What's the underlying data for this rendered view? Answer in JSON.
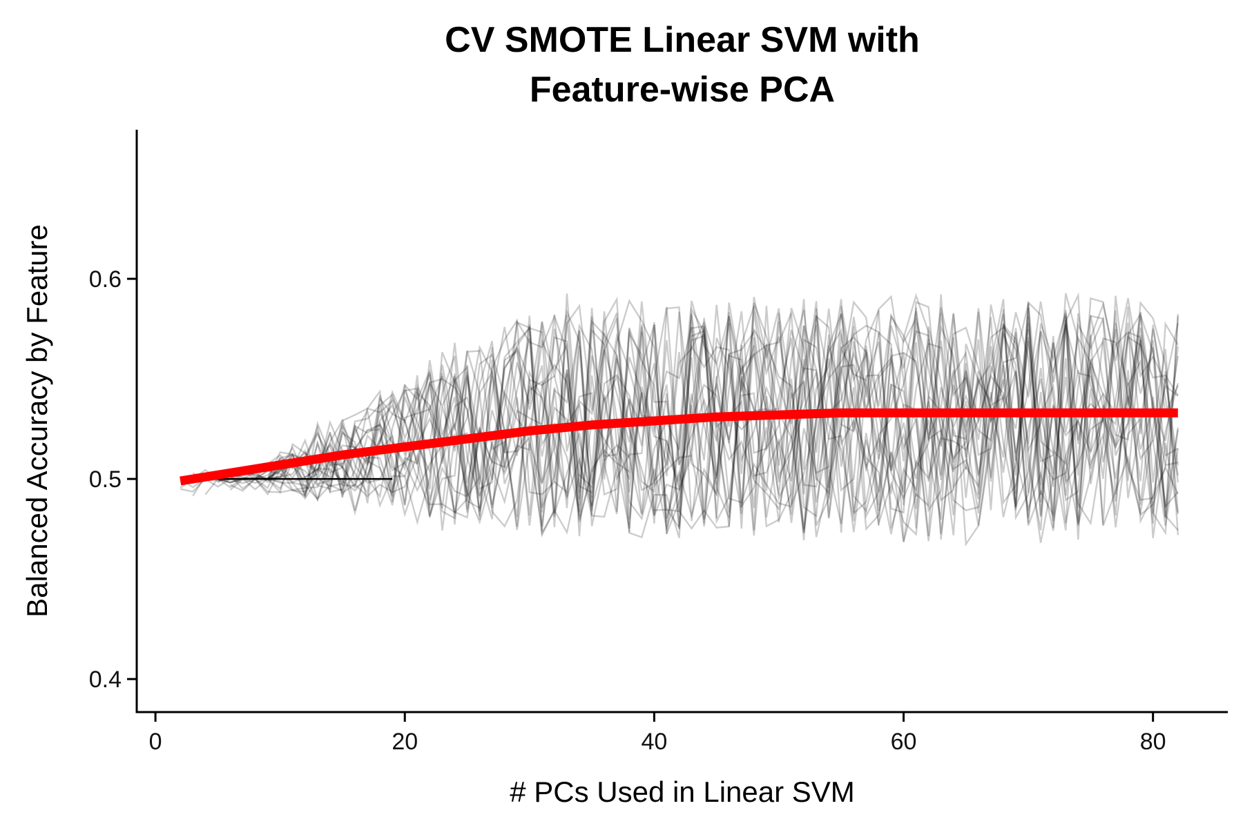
{
  "chart_data": {
    "type": "line",
    "title_lines": [
      "CV SMOTE Linear SVM with",
      "Feature-wise PCA"
    ],
    "xlabel": "# PCs Used in Linear SVM",
    "ylabel": "Balanced Accuracy by Feature",
    "xlim": [
      -1.5,
      86
    ],
    "ylim": [
      0.3835,
      0.6745
    ],
    "x_ticks": [
      0,
      20,
      40,
      60,
      80
    ],
    "x_tick_labels": [
      "0",
      "20",
      "40",
      "60",
      "80"
    ],
    "y_ticks": [
      0.4,
      0.5,
      0.6
    ],
    "y_tick_labels": [
      "0.4",
      "0.5",
      "0.6"
    ],
    "grid": false,
    "legend": "none",
    "background_series": {
      "count": 24,
      "color": "#000000",
      "opacity": 0.2,
      "x_start": 2,
      "x_end": 82,
      "note_visible": "many thin grey per-feature accuracy traces"
    },
    "series": [
      {
        "style": "thick-red-smooth",
        "color": "#ff0000",
        "x": [
          2,
          5,
          10,
          15,
          20,
          25,
          30,
          35,
          40,
          45,
          50,
          55,
          60,
          65,
          70,
          75,
          80,
          82
        ],
        "y": [
          0.499,
          0.502,
          0.507,
          0.512,
          0.516,
          0.52,
          0.524,
          0.527,
          0.529,
          0.531,
          0.532,
          0.533,
          0.533,
          0.533,
          0.533,
          0.533,
          0.533,
          0.533
        ]
      },
      {
        "style": "thin-black",
        "color": "#000000",
        "x": [
          2,
          19
        ],
        "y": [
          0.5,
          0.5
        ]
      }
    ],
    "colors": {
      "background_lines": "#000000",
      "smooth": "#ff0000",
      "axis": "#000000"
    }
  }
}
